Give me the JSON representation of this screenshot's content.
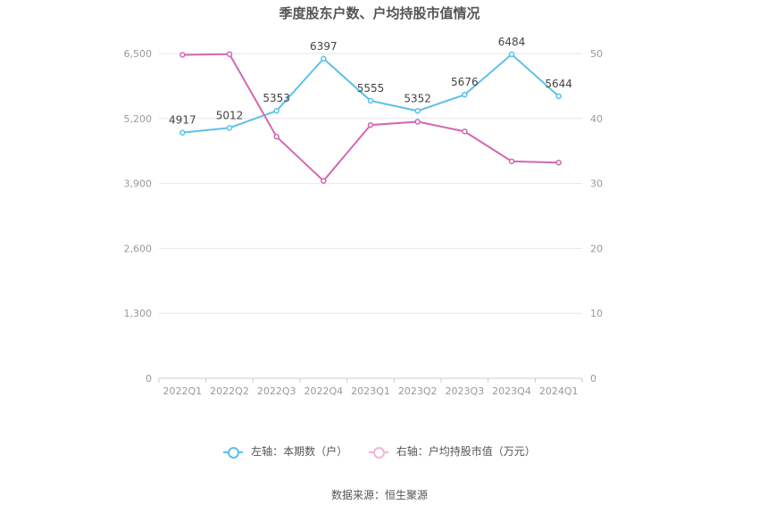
{
  "colors": {
    "left_series": "#5bc0eb",
    "right_series": "#d467b0",
    "grid": "#e6e6ee",
    "axis_text": "#999999",
    "label_text": "#444444"
  },
  "chart_data": {
    "type": "line",
    "title": "季度股东户数、户均持股市值情况",
    "categories": [
      "2022Q1",
      "2022Q2",
      "2022Q3",
      "2022Q4",
      "2023Q1",
      "2023Q2",
      "2023Q3",
      "2023Q4",
      "2024Q1"
    ],
    "y_left": {
      "ticks": [
        "0",
        "1,300",
        "2,600",
        "3,900",
        "5,200",
        "6,500"
      ],
      "ylim": [
        0,
        6500
      ]
    },
    "y_right": {
      "ticks": [
        "0",
        "10",
        "20",
        "30",
        "40",
        "50"
      ],
      "ylim": [
        0,
        50
      ]
    },
    "series": [
      {
        "name": "左轴：本期数（户）",
        "axis": "left",
        "values": [
          4917,
          5012,
          5353,
          6397,
          5555,
          5352,
          5676,
          6484,
          5644
        ],
        "labels": [
          "4917",
          "5012",
          "5353",
          "6397",
          "5555",
          "5352",
          "5676",
          "6484",
          "5644"
        ]
      },
      {
        "name": "右轴：户均持股市值（万元）",
        "axis": "right",
        "values": [
          49.8,
          49.9,
          37.2,
          30.4,
          39.0,
          39.5,
          38.0,
          33.4,
          33.2
        ]
      }
    ],
    "grid": true,
    "legend_position": "bottom"
  },
  "source": "数据来源：恒生聚源"
}
